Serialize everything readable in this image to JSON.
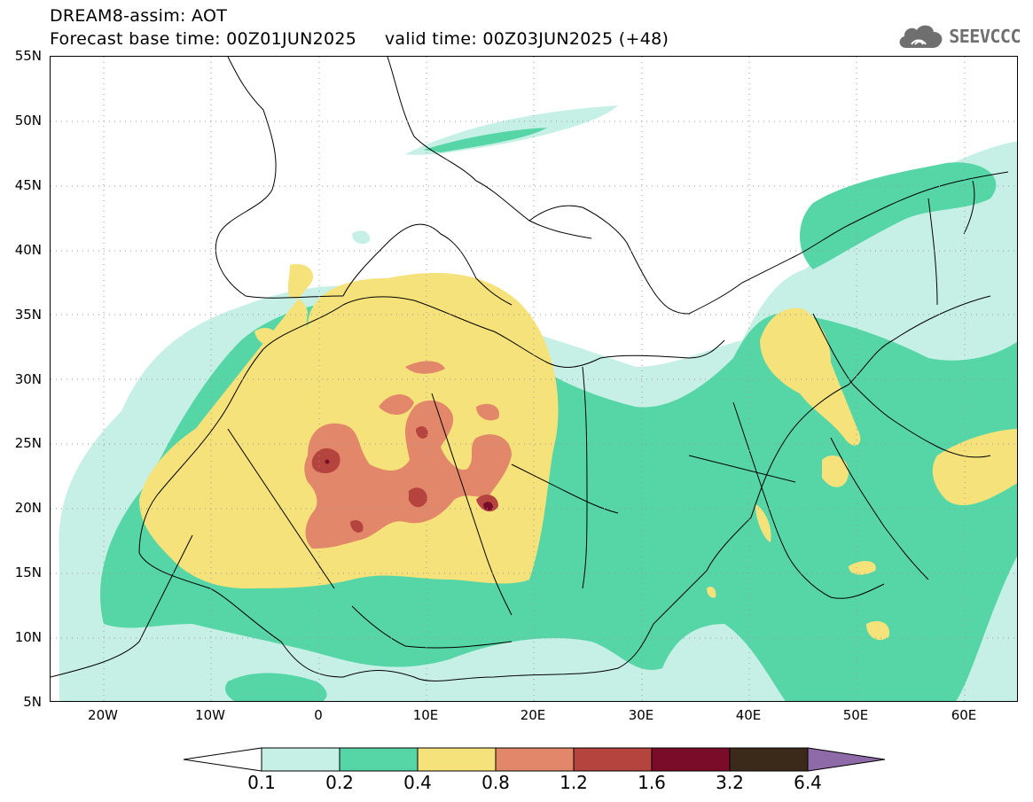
{
  "header": {
    "title_line_1": "DREAM8-assim: AOT",
    "title_line_2": "Forecast base time: 00Z01JUN2025     valid time: 00Z03JUN2025 (+48)",
    "logo_text": "SEEVCCC"
  },
  "map": {
    "latitude_labels": [
      "55N",
      "50N",
      "45N",
      "40N",
      "35N",
      "30N",
      "25N",
      "20N",
      "15N",
      "10N",
      "5N"
    ],
    "longitude_labels": [
      "20W",
      "10W",
      "0",
      "10E",
      "20E",
      "30E",
      "40E",
      "50E",
      "60E"
    ],
    "field": "Aerosol optical thickness (AOT)",
    "grid": "dotted"
  },
  "colorbar": {
    "tick_labels": [
      "0.1",
      "0.2",
      "0.4",
      "0.8",
      "1.2",
      "1.6",
      "3.2",
      "6.4"
    ],
    "colors": [
      "#ffffff",
      "#c6f0e6",
      "#56d6a6",
      "#f5e27a",
      "#e3876a",
      "#b4443d",
      "#7a0b29",
      "#3b2a1a",
      "#8e6aa8"
    ],
    "extend": "both"
  },
  "colors": {
    "level_0_1": "#c6f0e6",
    "level_0_2": "#56d6a6",
    "level_0_4": "#f5e27a",
    "level_0_8": "#e3876a",
    "level_1_2": "#b4443d",
    "level_1_6": "#7a0b29",
    "coastline": "#000000"
  }
}
